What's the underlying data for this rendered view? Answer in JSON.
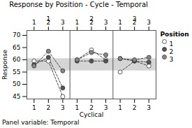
{
  "chart_data": {
    "type": "line",
    "title": "Response by Position - Cycle - Temporal",
    "xlabel": "Cyclical",
    "ylabel": "Response",
    "annotations": [
      "Panel variable: Temporal"
    ],
    "legend_title": "Position",
    "legend": "upper right",
    "ylim": [
      44,
      72
    ],
    "yticks": [
      45,
      50,
      55,
      60,
      65,
      70
    ],
    "shaded_range": [
      55.5,
      60.5
    ],
    "marker": "o",
    "line_style": "dashed",
    "panels": [
      {
        "label": "1",
        "categories": [
          "1",
          "2",
          "3"
        ],
        "series": [
          {
            "name": "1",
            "color": "#ffffff",
            "values": [
              59.5,
              59.5,
              45.0
            ]
          },
          {
            "name": "2",
            "color": "#555555",
            "values": [
              58.0,
              61.0,
              48.5
            ]
          },
          {
            "name": "3",
            "color": "#888888",
            "values": [
              57.5,
              63.5,
              55.5
            ]
          }
        ]
      },
      {
        "label": "2",
        "categories": [
          "1",
          "2",
          "3"
        ],
        "series": [
          {
            "name": "1",
            "color": "#ffffff",
            "values": [
              60.0,
              64.0,
              60.0
            ]
          },
          {
            "name": "2",
            "color": "#555555",
            "values": [
              59.5,
              59.5,
              59.5
            ]
          },
          {
            "name": "3",
            "color": "#888888",
            "values": [
              60.0,
              63.0,
              62.0
            ]
          }
        ]
      },
      {
        "label": "3",
        "categories": [
          "1",
          "2",
          "3"
        ],
        "series": [
          {
            "name": "1",
            "color": "#ffffff",
            "values": [
              55.0,
              59.5,
              57.5
            ]
          },
          {
            "name": "2",
            "color": "#555555",
            "values": [
              60.5,
              59.5,
              59.0
            ]
          },
          {
            "name": "3",
            "color": "#888888",
            "values": [
              60.5,
              60.0,
              61.0
            ]
          }
        ]
      }
    ]
  }
}
